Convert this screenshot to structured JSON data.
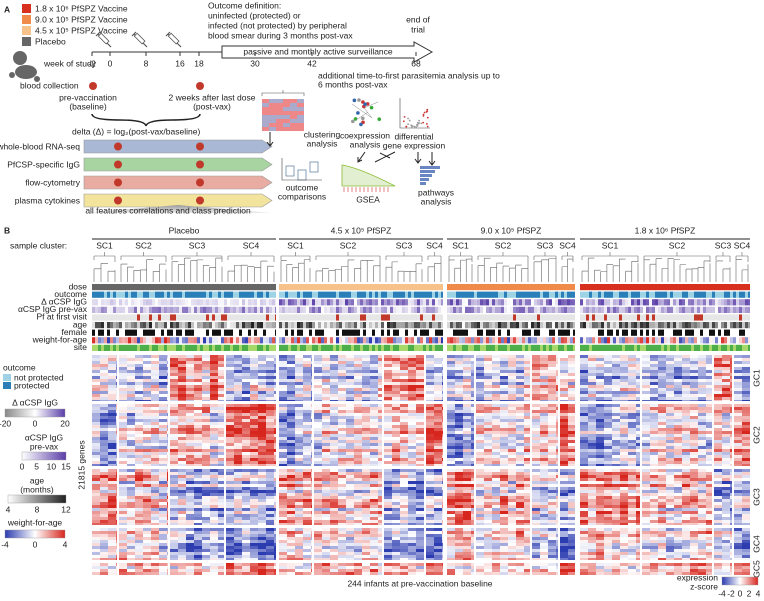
{
  "panel_a": {
    "label": "A",
    "legend": [
      "1.8 x 10⁶ PfSPZ Vaccine",
      "9.0 x 10⁵ PfSPZ Vaccine",
      "4.5 x 10⁵ PfSPZ Vaccine",
      "Placebo"
    ],
    "outcome_definition": [
      "Outcome definition:",
      "uninfected (protected) or",
      "infected (not protected) by peripheral",
      "blood smear during 3 months post-vax"
    ],
    "end_of_trial": [
      "end of",
      "trial"
    ],
    "week_label": "week of study",
    "weeks": [
      "-2",
      "0",
      "8",
      "16",
      "18",
      "30",
      "42",
      "68"
    ],
    "surveillance": "passive and monthly active surveillance",
    "additional": [
      "additional time-to-first parasitemia analysis up to",
      "6 months post-vax"
    ],
    "blood_collection": "blood collection",
    "baseline": [
      "pre-vaccination",
      "(baseline)"
    ],
    "post": [
      "2 weeks after last dose",
      "(post-vax)"
    ],
    "delta": "delta (Δ) = log₂(post-vax/baseline)",
    "assays": [
      "whole-blood RNA-seq",
      "PfCSP-specific IgG",
      "flow-cytometry",
      "plasma cytokines"
    ],
    "class_prediction": "all features correlations and class prediction",
    "analyses": {
      "clustering": [
        "clustering",
        "analysis"
      ],
      "coexpression": [
        "coexpression",
        "analysis"
      ],
      "differential": [
        "differential",
        "gene expression"
      ],
      "outcome": [
        "outcome",
        "comparisons"
      ],
      "gsea": "GSEA",
      "pathways": [
        "pathways",
        "analysis"
      ]
    }
  },
  "panel_b": {
    "label": "B",
    "groups": [
      "Placebo",
      "4.5 x 10⁵ PfSPZ",
      "9.0 x 10⁵ PfSPZ",
      "1.8 x 10⁶ PfSPZ"
    ],
    "sample_cluster_label": "sample cluster:",
    "sample_clusters": [
      [
        "SC1",
        "SC2",
        "SC3",
        "SC4"
      ],
      [
        "SC1",
        "SC2",
        "SC3",
        "SC4"
      ],
      [
        "SC1",
        "SC2",
        "SC3",
        "SC4"
      ],
      [
        "SC1",
        "SC2",
        "SC3",
        "SC4"
      ]
    ],
    "tracks": [
      "dose",
      "outcome",
      "Δ αCSP IgG",
      "αCSP IgG pre-vax",
      "Pf at first visit",
      "age",
      "female",
      "weight-for-age",
      "site"
    ],
    "outcome_legend": {
      "title": "outcome",
      "items": [
        "not protected",
        "protected"
      ]
    },
    "delta_legend": {
      "title": "Δ αCSP IgG",
      "ticks": [
        "-20",
        "0",
        "20"
      ]
    },
    "prevax_legend": {
      "title": [
        "αCSP IgG",
        "pre-vax"
      ],
      "ticks": [
        "0",
        "5",
        "10",
        "15"
      ]
    },
    "age_legend": {
      "title": [
        "age",
        "(months)"
      ],
      "ticks": [
        "4",
        "8",
        "12"
      ]
    },
    "wfa_legend": {
      "title": "weight-for-age",
      "ticks": [
        "-4",
        "0",
        "4"
      ]
    },
    "genes": "21815 genes",
    "gene_clusters": [
      "GC1",
      "GC2",
      "GC3",
      "GC4",
      "GC5"
    ],
    "x_label": "244 infants at pre-vaccination baseline",
    "zscore_legend": {
      "title": [
        "expression",
        "z-score"
      ],
      "ticks": [
        "-4",
        "-2",
        "0",
        "2",
        "4"
      ]
    }
  }
}
